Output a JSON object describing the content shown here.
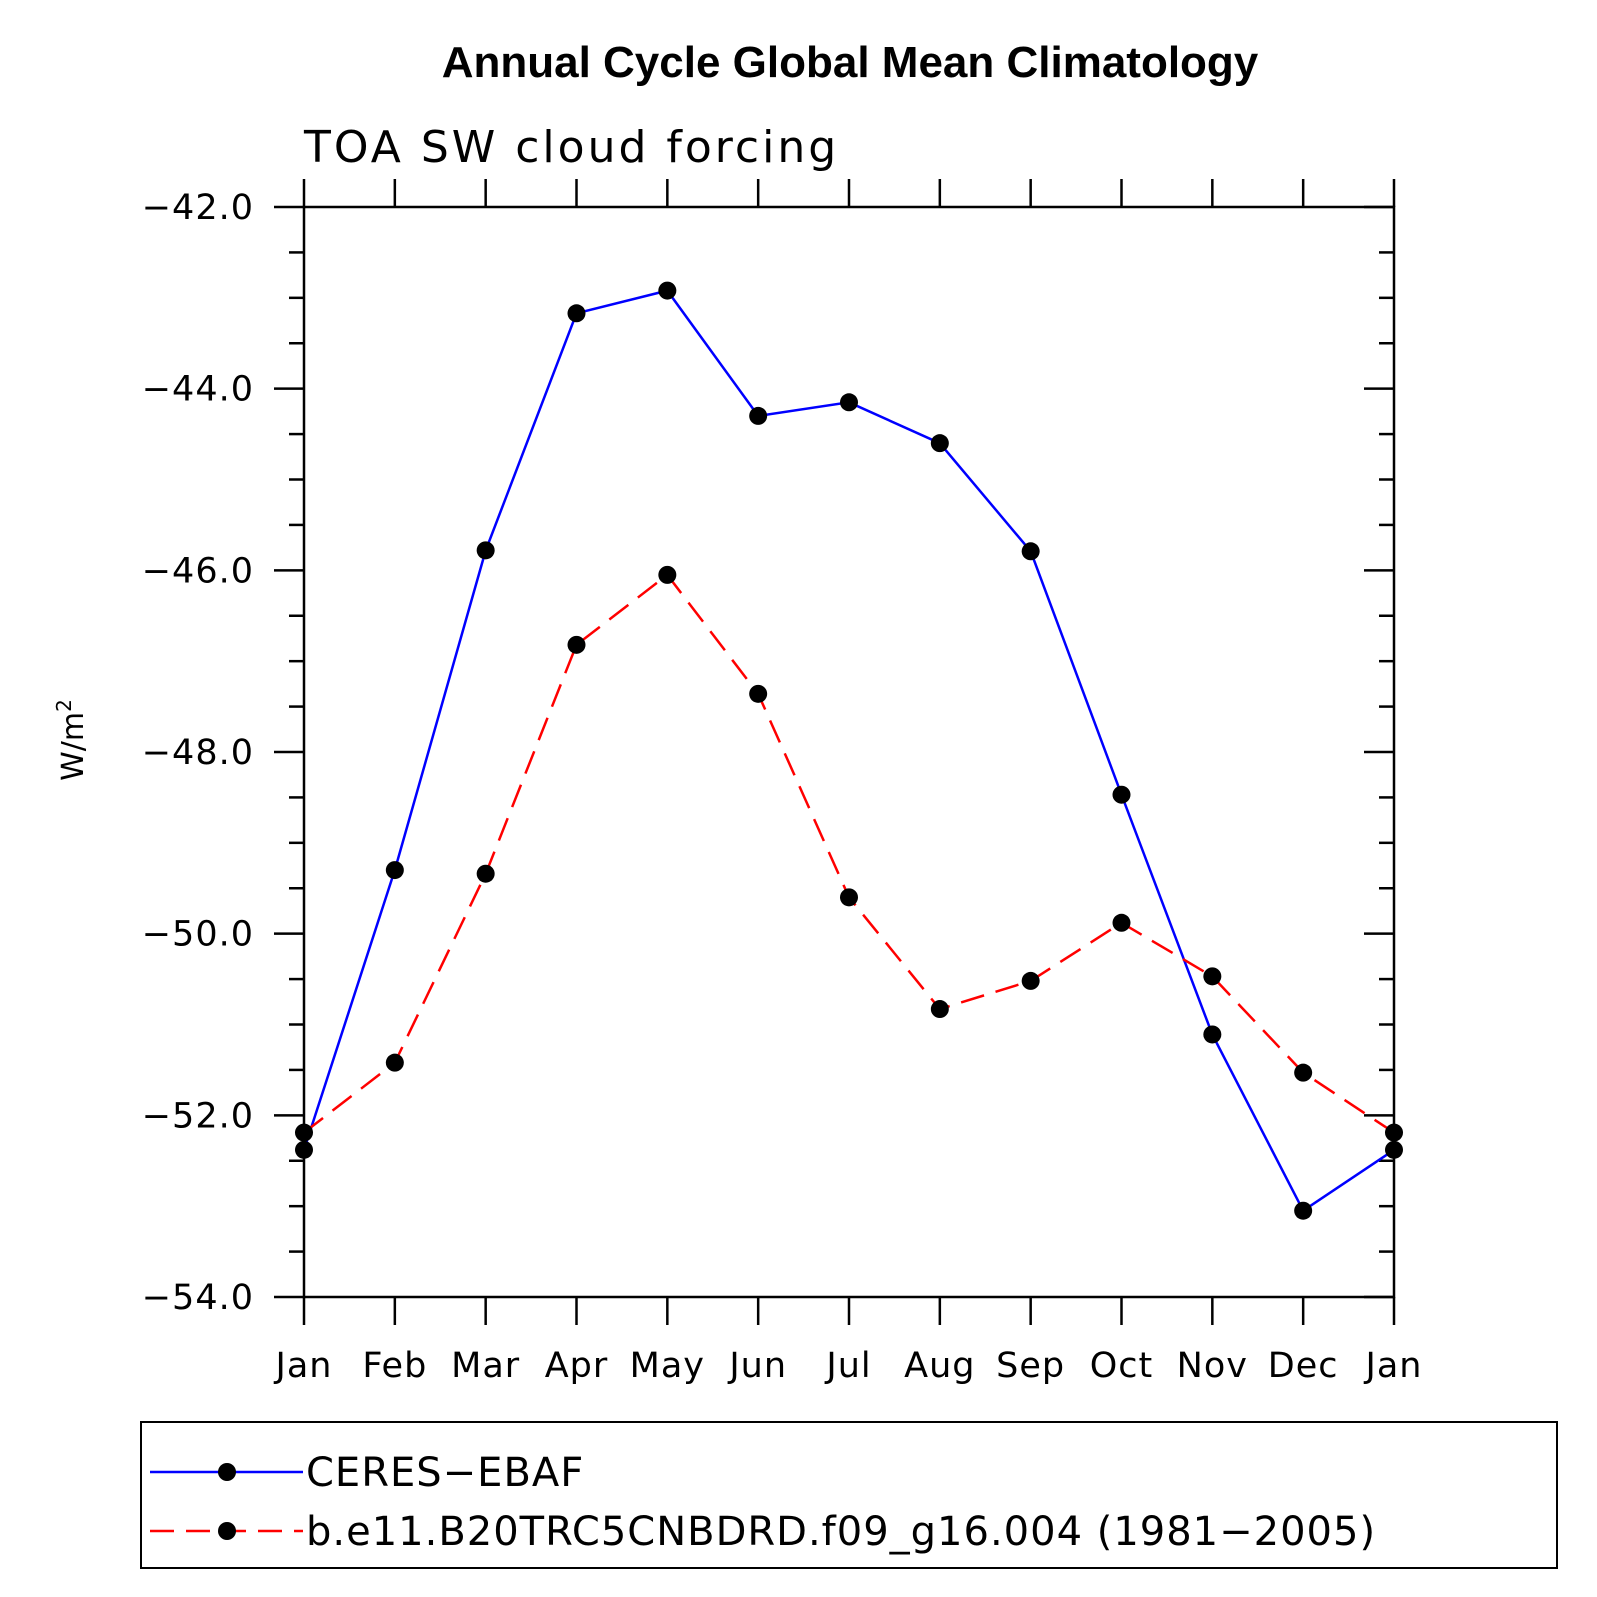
{
  "chart_data": {
    "type": "line",
    "title": "Annual Cycle Global Mean Climatology",
    "subtitle": "TOA SW cloud forcing",
    "xlabel": "",
    "ylabel_base": "W/m",
    "ylabel_sup": "2",
    "categories": [
      "Jan",
      "Feb",
      "Mar",
      "Apr",
      "May",
      "Jun",
      "Jul",
      "Aug",
      "Sep",
      "Oct",
      "Nov",
      "Dec",
      "Jan"
    ],
    "ylim": [
      -54.0,
      -42.0
    ],
    "yticks": [
      -54.0,
      -52.0,
      -50.0,
      -48.0,
      -46.0,
      -44.0,
      -42.0
    ],
    "ytick_labels": [
      "−54.0",
      "−52.0",
      "−50.0",
      "−48.0",
      "−46.0",
      "−44.0",
      "−42.0"
    ],
    "yminor_step": 0.5,
    "series": [
      {
        "name": "CERES−EBAF",
        "color": "#0000ff",
        "dash": "solid",
        "marker_color": "#000000",
        "values": [
          -52.38,
          -49.3,
          -45.78,
          -43.17,
          -42.92,
          -44.3,
          -44.15,
          -44.6,
          -45.79,
          -48.47,
          -51.11,
          -53.05,
          -52.38
        ]
      },
      {
        "name": "b.e11.B20TRC5CNBDRD.f09_g16.004 (1981−2005)",
        "color": "#ff0000",
        "dash": "dashed",
        "marker_color": "#000000",
        "values": [
          -52.19,
          -51.42,
          -49.34,
          -46.82,
          -46.05,
          -47.36,
          -49.6,
          -50.83,
          -50.52,
          -49.88,
          -50.47,
          -51.53,
          -52.19
        ]
      }
    ],
    "legend_position": "bottom"
  }
}
